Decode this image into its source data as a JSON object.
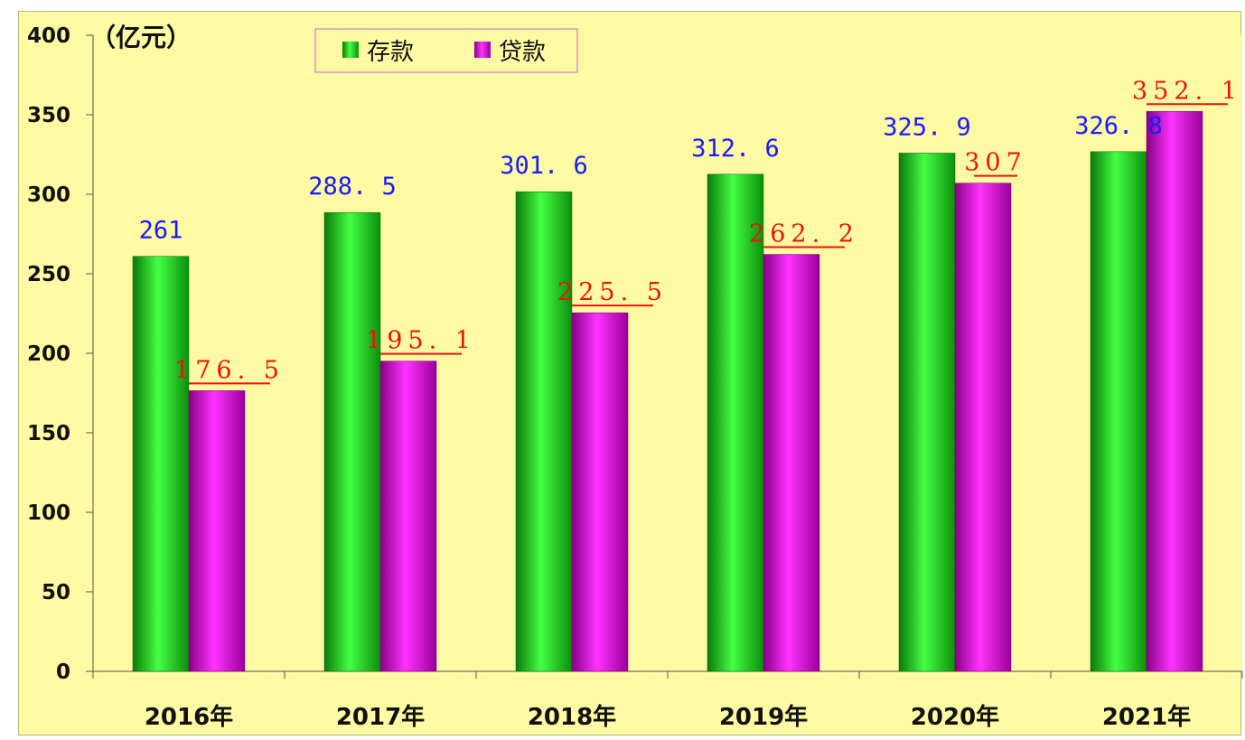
{
  "chart_data": {
    "type": "bar",
    "unit_label": "（亿元）",
    "categories": [
      "2016年",
      "2017年",
      "2018年",
      "2019年",
      "2020年",
      "2021年"
    ],
    "series": [
      {
        "name": "存款",
        "values": [
          261,
          288.5,
          301.6,
          312.6,
          325.9,
          326.8
        ],
        "labels": [
          "261",
          "288. 5",
          "301. 6",
          "312. 6",
          "325. 9",
          "326. 8"
        ],
        "color": "#11cc11"
      },
      {
        "name": "贷款",
        "values": [
          176.5,
          195.1,
          225.5,
          262.2,
          307,
          352.1
        ],
        "labels": [
          "176. 5",
          "195. 1",
          "225. 5",
          "262. 2",
          "307",
          "352. 1"
        ],
        "color": "#dd11dd"
      }
    ],
    "y_ticks": [
      "0",
      "50",
      "100",
      "150",
      "200",
      "250",
      "300",
      "350",
      "400"
    ],
    "ylim": [
      0,
      400
    ],
    "grid": false,
    "legend_position": "top-center",
    "background": "#fdfaa3"
  }
}
